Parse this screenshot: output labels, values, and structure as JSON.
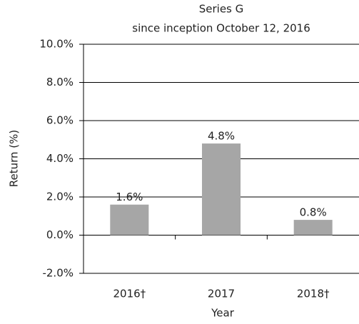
{
  "chart_data": {
    "type": "bar",
    "title": "Series G",
    "subtitle": "since inception October 12, 2016",
    "categories": [
      "2016†",
      "2017",
      "2018†"
    ],
    "values": [
      1.6,
      4.8,
      0.8
    ],
    "value_labels": [
      "1.6%",
      "4.8%",
      "0.8%"
    ],
    "color": "#a6a6a6",
    "xlabel": "Year",
    "ylabel": "Return (%)",
    "ylim": [
      -2,
      10
    ],
    "yticks": [
      {
        "value": -2,
        "label": "-2.0%"
      },
      {
        "value": 0,
        "label": "0.0%"
      },
      {
        "value": 2,
        "label": "2.0%"
      },
      {
        "value": 4,
        "label": "4.0%"
      },
      {
        "value": 6,
        "label": "6.0%"
      },
      {
        "value": 8,
        "label": "8.0%"
      },
      {
        "value": 10,
        "label": "10.0%"
      }
    ],
    "grid": true
  }
}
